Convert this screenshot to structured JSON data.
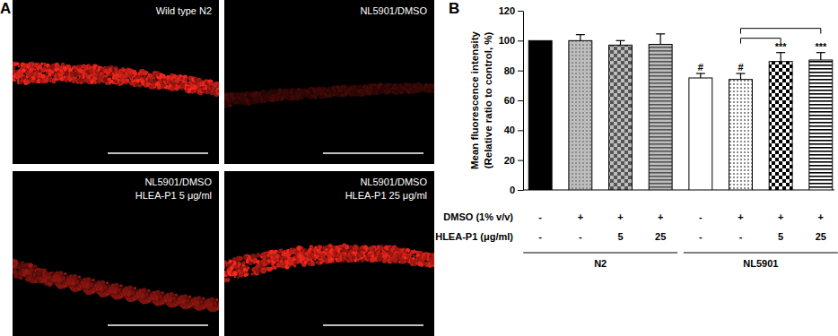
{
  "figure": {
    "panel_a": {
      "label": "A",
      "images": [
        {
          "lines": [
            "Wild type N2"
          ]
        },
        {
          "lines": [
            "NL5901/DMSO"
          ]
        },
        {
          "lines": [
            "NL5901/DMSO",
            "HLEA-P1 5 μg/ml"
          ]
        },
        {
          "lines": [
            "NL5901/DMSO",
            "HLEA-P1 25 μg/ml"
          ]
        }
      ]
    }
  },
  "chart_data": {
    "type": "bar",
    "panel_label": "B",
    "y_label": [
      "Mean fluorescence intensity",
      "(Relative ratio to control, %)"
    ],
    "categories": [
      null,
      null,
      null,
      null,
      null,
      null,
      null,
      null
    ],
    "values": [
      100,
      100,
      97,
      97.5,
      75,
      74,
      86,
      87
    ],
    "errors": [
      0,
      4,
      3,
      7,
      3,
      4,
      6,
      5
    ],
    "colors": [
      "#000000",
      "#bdbdbd",
      "#bdbdbd",
      "#bdbdbd",
      "#ffffff",
      "#ffffff",
      "#ffffff",
      "#ffffff"
    ],
    "ylim": [
      0,
      120
    ],
    "yticks": [
      0,
      20,
      40,
      60,
      80,
      100,
      120
    ],
    "treatment_table": [
      {
        "label": "DMSO (1% v/v)",
        "cells": [
          "-",
          "+",
          "+",
          "+",
          "-",
          "+",
          "+",
          "+"
        ]
      },
      {
        "label": "HLEA-P1 (μg/ml)",
        "cells": [
          "-",
          "-",
          "5",
          "25",
          "-",
          "-",
          "5",
          "25"
        ]
      }
    ],
    "groups": [
      {
        "label": "N2",
        "categories": [
          0,
          3
        ]
      },
      {
        "label": "NL5901",
        "categories": [
          4,
          7
        ]
      }
    ],
    "annotations": [
      {
        "text": "#",
        "index": 4
      },
      {
        "text": "#",
        "index": 5
      },
      {
        "text": "***",
        "index": 6
      },
      {
        "text": "***",
        "index": 7
      }
    ],
    "brackets": [
      [
        5,
        6
      ],
      [
        5,
        7
      ]
    ]
  }
}
